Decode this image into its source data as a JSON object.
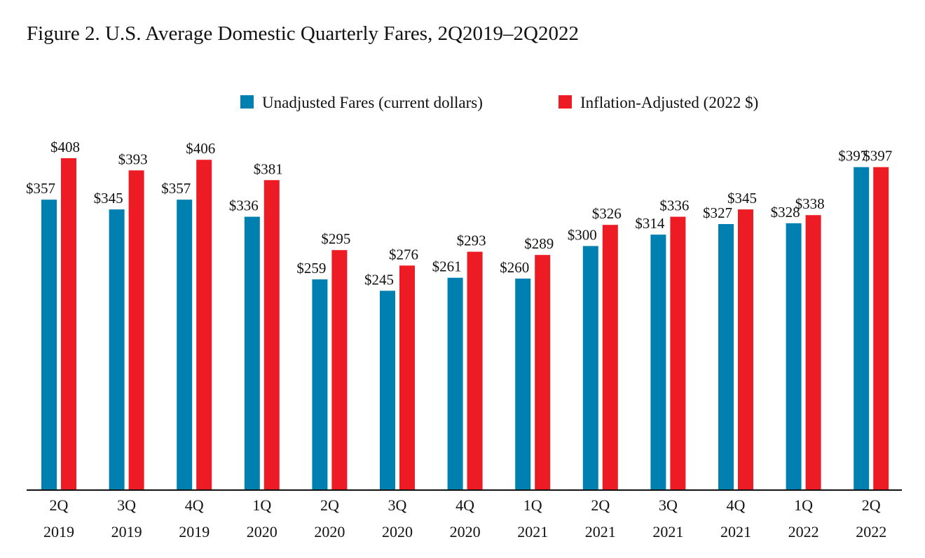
{
  "chart_data": {
    "type": "bar",
    "title": "Figure 2. U.S. Average Domestic Quarterly Fares, 2Q2019–2Q2022",
    "xlabel": "",
    "ylabel": "",
    "ylim": [
      0,
      430
    ],
    "grid": false,
    "legend_placement": "top-right",
    "categories": [
      [
        "2Q",
        "2019"
      ],
      [
        "3Q",
        "2019"
      ],
      [
        "4Q",
        "2019"
      ],
      [
        "1Q",
        "2020"
      ],
      [
        "2Q",
        "2020"
      ],
      [
        "3Q",
        "2020"
      ],
      [
        "4Q",
        "2020"
      ],
      [
        "1Q",
        "2021"
      ],
      [
        "2Q",
        "2021"
      ],
      [
        "3Q",
        "2021"
      ],
      [
        "4Q",
        "2021"
      ],
      [
        "1Q",
        "2022"
      ],
      [
        "2Q",
        "2022"
      ]
    ],
    "series": [
      {
        "name": "Unadjusted Fares (current dollars)",
        "color": "#0080B0",
        "values": [
          357,
          345,
          357,
          336,
          259,
          245,
          261,
          260,
          300,
          314,
          327,
          328,
          397
        ]
      },
      {
        "name": "Inflation-Adjusted (2022 $)",
        "color": "#ED1C24",
        "values": [
          408,
          393,
          406,
          381,
          295,
          276,
          293,
          289,
          326,
          336,
          345,
          338,
          397
        ]
      }
    ],
    "value_label_prefix": "$"
  }
}
